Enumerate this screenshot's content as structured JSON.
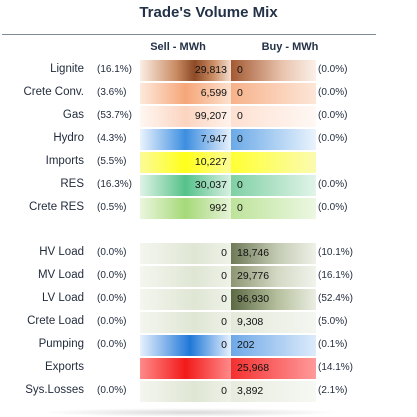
{
  "title": "Trade's Volume Mix",
  "headers": {
    "sell": "Sell - MWh",
    "buy": "Buy - MWh"
  },
  "generation": [
    {
      "label": "Lignite",
      "sell_pct": "(16.1%)",
      "sell": "29,813",
      "buy": "0",
      "buy_pct": "(0.0%)"
    },
    {
      "label": "Crete Conv.",
      "sell_pct": "(3.6%)",
      "sell": "6,599",
      "buy": "0",
      "buy_pct": "(0.0%)"
    },
    {
      "label": "Gas",
      "sell_pct": "(53.7%)",
      "sell": "99,207",
      "buy": "0",
      "buy_pct": "(0.0%)"
    },
    {
      "label": "Hydro",
      "sell_pct": "(4.3%)",
      "sell": "7,947",
      "buy": "0",
      "buy_pct": "(0.0%)"
    },
    {
      "label": "Imports",
      "sell_pct": "(5.5%)",
      "sell": "10,227",
      "buy": "",
      "buy_pct": ""
    },
    {
      "label": "RES",
      "sell_pct": "(16.3%)",
      "sell": "30,037",
      "buy": "0",
      "buy_pct": "(0.0%)"
    },
    {
      "label": "Crete RES",
      "sell_pct": "(0.5%)",
      "sell": "992",
      "buy": "0",
      "buy_pct": "(0.0%)"
    }
  ],
  "loads": [
    {
      "label": "HV Load",
      "sell_pct": "(0.0%)",
      "sell": "0",
      "buy": "18,746",
      "buy_pct": "(10.1%)"
    },
    {
      "label": "MV Load",
      "sell_pct": "(0.0%)",
      "sell": "0",
      "buy": "29,776",
      "buy_pct": "(16.1%)"
    },
    {
      "label": "LV Load",
      "sell_pct": "(0.0%)",
      "sell": "0",
      "buy": "96,930",
      "buy_pct": "(52.4%)"
    },
    {
      "label": "Crete Load",
      "sell_pct": "(0.0%)",
      "sell": "0",
      "buy": "9,308",
      "buy_pct": "(5.0%)"
    },
    {
      "label": "Pumping",
      "sell_pct": "(0.0%)",
      "sell": "0",
      "buy": "202",
      "buy_pct": "(0.1%)"
    },
    {
      "label": "Exports",
      "sell_pct": "",
      "sell": "",
      "buy": "25,968",
      "buy_pct": "(14.1%)"
    },
    {
      "label": "Sys.Losses",
      "sell_pct": "(0.0%)",
      "sell": "0",
      "buy": "3,892",
      "buy_pct": "(2.1%)"
    }
  ]
}
